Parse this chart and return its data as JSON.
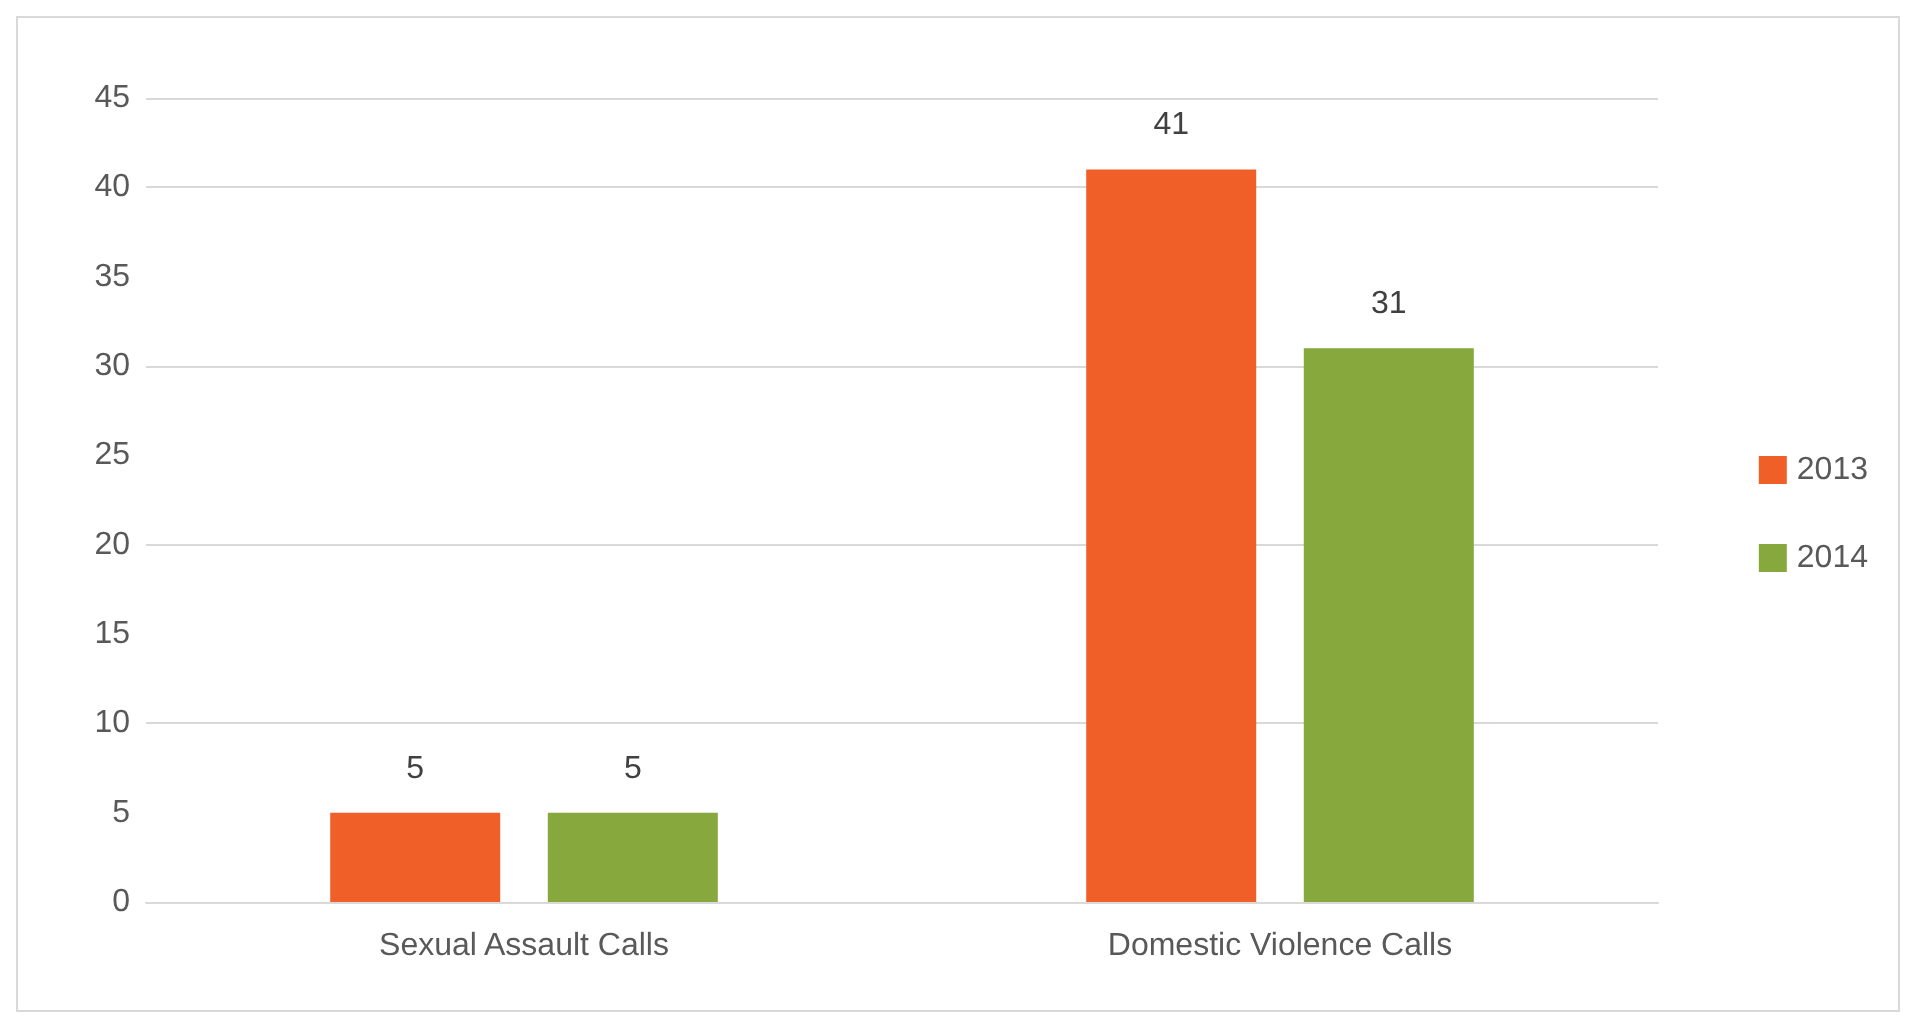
{
  "chart_data": {
    "type": "bar",
    "categories": [
      "Sexual Assault Calls",
      "Domestic Violence Calls"
    ],
    "series": [
      {
        "name": "2013",
        "color": "#f15f29",
        "values": [
          5,
          41
        ]
      },
      {
        "name": "2014",
        "color": "#86a83d",
        "values": [
          5,
          31
        ]
      }
    ],
    "ylim": [
      0,
      45
    ],
    "yticks": [
      0,
      5,
      10,
      15,
      20,
      25,
      30,
      35,
      40,
      45
    ],
    "grid": "y",
    "legend": "right",
    "data_labels": true
  }
}
